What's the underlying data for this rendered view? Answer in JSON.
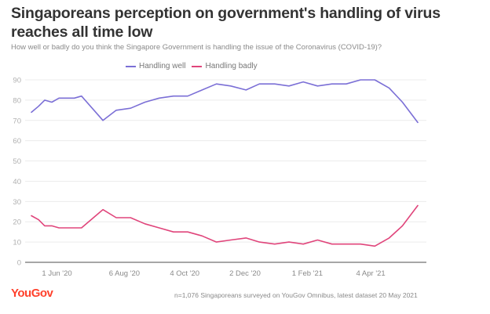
{
  "header": {
    "title": "Singaporeans perception on government's handling of virus reaches all time low",
    "subtitle": "How well or badly do you think the Singapore Government is handling the issue of the Coronavirus (COVID-19)?"
  },
  "footer": {
    "logo": "YouGov",
    "note": "n=1,076 Singaporeans surveyed on YouGov Omnibus, latest dataset 20 May 2021"
  },
  "chart_data": {
    "type": "line",
    "title": "Singaporeans perception on government's handling of virus reaches all time low",
    "subtitle": "How well or badly do you think the Singapore Government is handling the issue of the Coronavirus (COVID-19)?",
    "xlabel": "",
    "ylabel": "",
    "ylim": [
      0,
      90
    ],
    "yticks": [
      0,
      10,
      20,
      30,
      40,
      50,
      60,
      70,
      80,
      90
    ],
    "grid": true,
    "legend_position": "top-center",
    "xticks": [
      {
        "label": "1 Jun '20",
        "date": "2020-06-01"
      },
      {
        "label": "6 Aug '20",
        "date": "2020-08-06"
      },
      {
        "label": "4 Oct '20",
        "date": "2020-10-04"
      },
      {
        "label": "2 Dec '20",
        "date": "2020-12-02"
      },
      {
        "label": "1 Feb '21",
        "date": "2021-02-01"
      },
      {
        "label": "4 Apr '21",
        "date": "2021-04-04"
      }
    ],
    "xlim": [
      "2020-05-05",
      "2021-05-28"
    ],
    "x": [
      "2020-05-07",
      "2020-05-14",
      "2020-05-20",
      "2020-05-27",
      "2020-06-03",
      "2020-06-18",
      "2020-06-25",
      "2020-07-16",
      "2020-07-29",
      "2020-08-12",
      "2020-08-26",
      "2020-09-09",
      "2020-09-23",
      "2020-10-07",
      "2020-10-21",
      "2020-11-04",
      "2020-11-18",
      "2020-12-03",
      "2020-12-16",
      "2020-12-31",
      "2021-01-14",
      "2021-01-28",
      "2021-02-11",
      "2021-02-25",
      "2021-03-11",
      "2021-03-25",
      "2021-04-08",
      "2021-04-22",
      "2021-05-05",
      "2021-05-20"
    ],
    "series": [
      {
        "name": "Handling well",
        "color": "#7b6fd6",
        "values": [
          74,
          77,
          80,
          79,
          81,
          81,
          82,
          70,
          75,
          76,
          79,
          81,
          82,
          82,
          85,
          88,
          87,
          85,
          88,
          88,
          87,
          89,
          87,
          88,
          88,
          90,
          90,
          86,
          79,
          69
        ]
      },
      {
        "name": "Handling badly",
        "color": "#e0457b",
        "values": [
          23,
          21,
          18,
          18,
          17,
          17,
          17,
          26,
          22,
          22,
          19,
          17,
          15,
          15,
          13,
          10,
          11,
          12,
          10,
          9,
          10,
          9,
          11,
          9,
          9,
          9,
          8,
          12,
          18,
          28
        ]
      }
    ]
  }
}
